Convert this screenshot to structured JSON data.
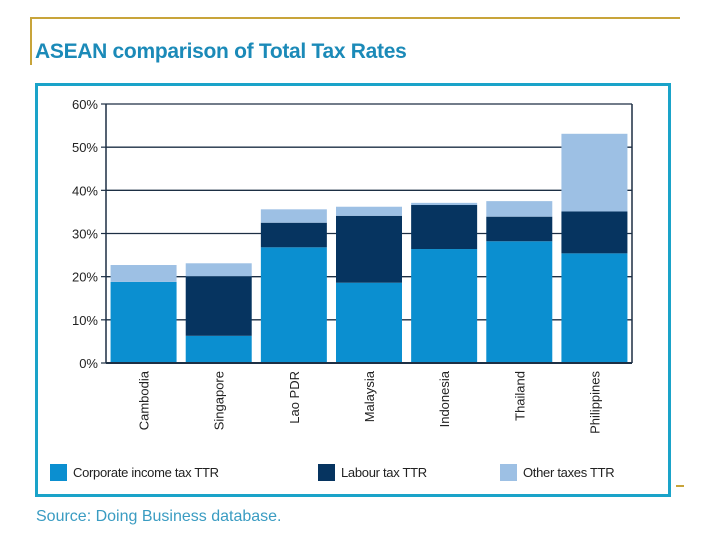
{
  "slide": {
    "title": "ASEAN comparison of Total Tax Rates",
    "source": "Source: Doing Business database."
  },
  "chart_data": {
    "type": "bar",
    "stacked": true,
    "title": "ASEAN comparison of Total Tax Rates",
    "xlabel": "",
    "ylabel": "",
    "ylim": [
      0,
      60
    ],
    "yticks": [
      0,
      10,
      20,
      30,
      40,
      50,
      60
    ],
    "ytick_labels": [
      "0%",
      "10%",
      "20%",
      "30%",
      "40%",
      "50%",
      "60%"
    ],
    "grid": true,
    "legend_position": "bottom",
    "categories": [
      "Cambodia",
      "Singapore",
      "Lao PDR",
      "Malaysia",
      "Indonesia",
      "Thailand",
      "Philippines"
    ],
    "series": [
      {
        "name": "Corporate income tax TTR",
        "color": "#0b8fd0",
        "values": [
          18.8,
          6.3,
          26.8,
          18.6,
          26.4,
          28.2,
          25.4
        ]
      },
      {
        "name": "Labour tax TTR",
        "color": "#063460",
        "values": [
          0.0,
          13.8,
          5.7,
          15.5,
          10.2,
          5.7,
          9.7
        ]
      },
      {
        "name": "Other taxes TTR",
        "color": "#9dc0e4",
        "values": [
          3.9,
          3.0,
          3.1,
          2.1,
          0.5,
          3.6,
          18.0
        ]
      }
    ]
  }
}
